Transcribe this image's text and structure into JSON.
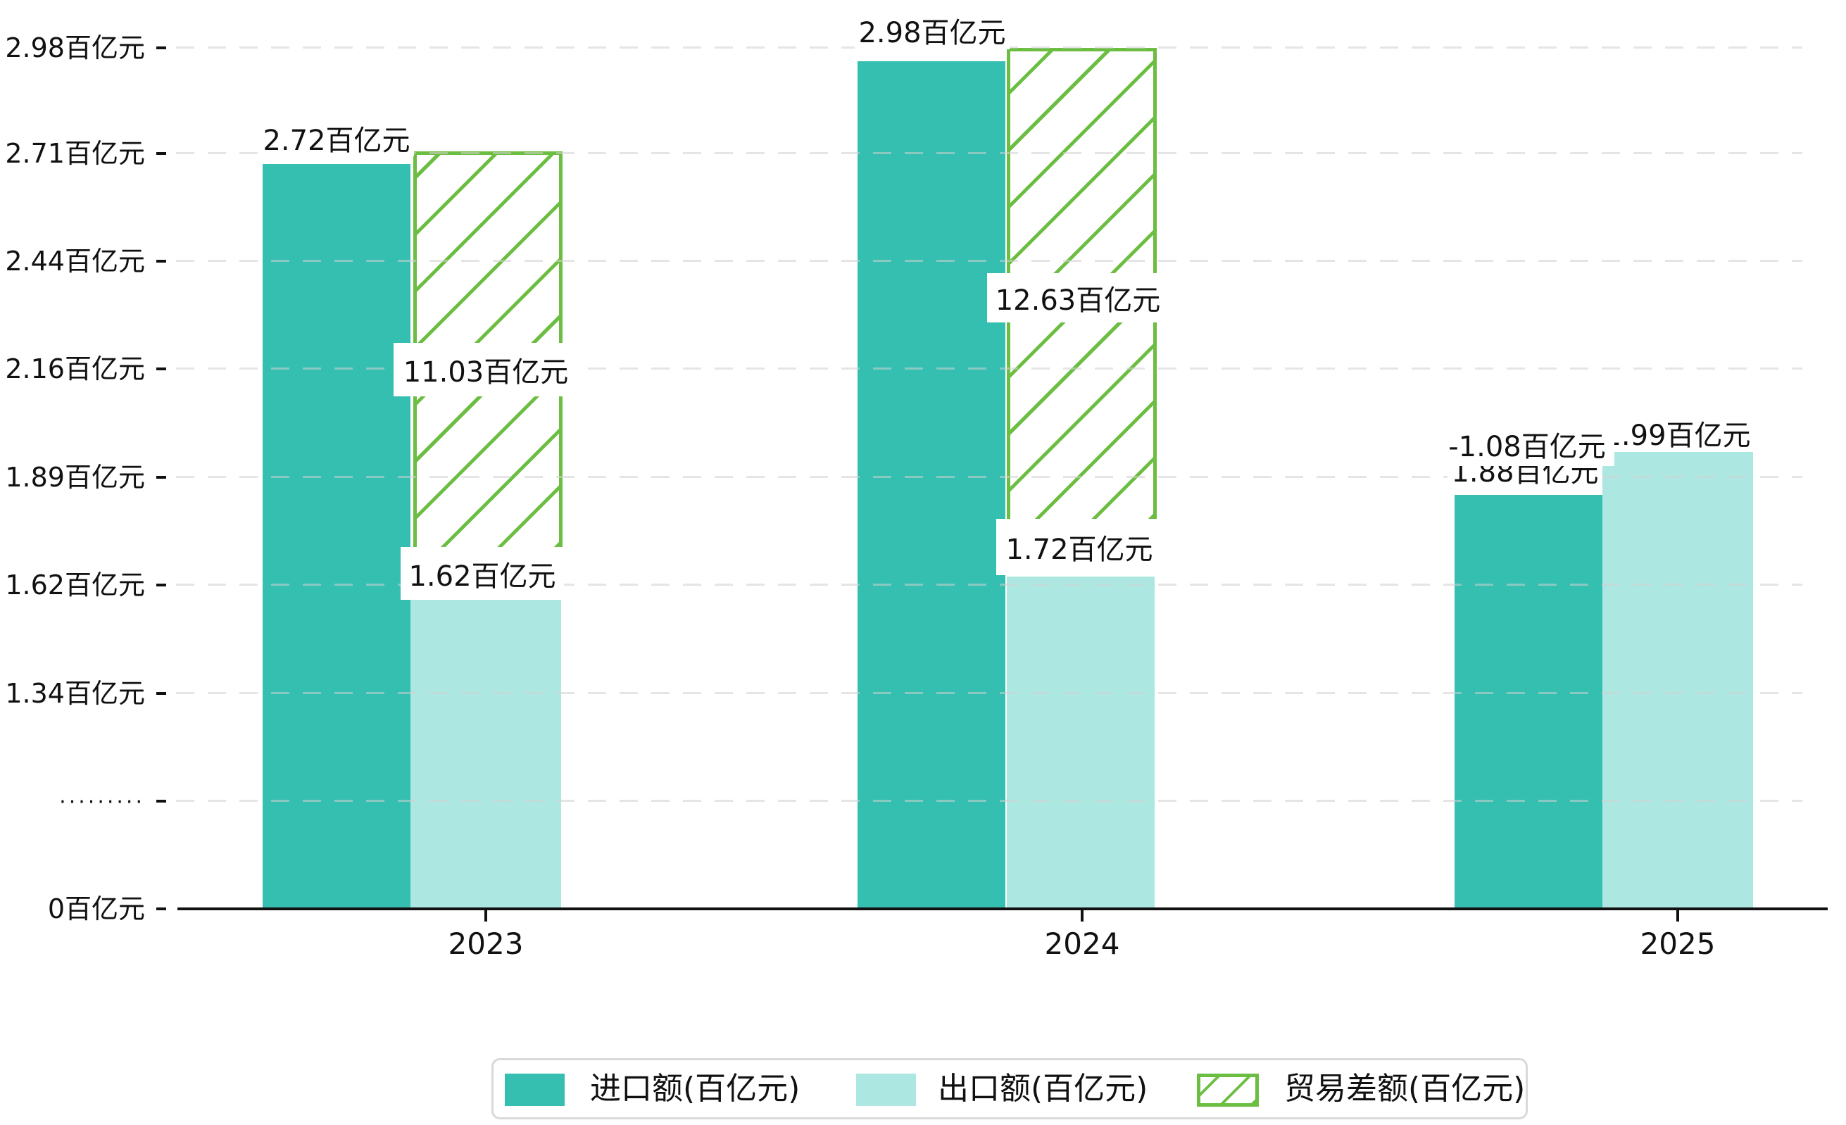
{
  "chart_data": {
    "type": "bar",
    "title": "",
    "xlabel": "",
    "ylabel": "",
    "categories": [
      "2023",
      "2024",
      "2025"
    ],
    "series": [
      {
        "name": "进口额(百亿元)",
        "key": "import",
        "values": [
          2.72,
          2.98,
          1.88
        ],
        "color": "#34bfb1",
        "pattern": "solid"
      },
      {
        "name": "出口额(百亿元)",
        "key": "export",
        "values": [
          1.62,
          1.72,
          1.99
        ],
        "color": "#ace8e1",
        "pattern": "solid"
      },
      {
        "name": "贸易差额(百亿元)",
        "key": "trade_balance",
        "values": [
          11.03,
          12.63,
          -1.08
        ],
        "color": "#6cbe42",
        "pattern": "diagonal-hatch"
      }
    ],
    "y_axis_unit": "百亿元",
    "y_ticks": [
      "2.98百亿元",
      "2.71百亿元",
      "2.44百亿元",
      "2.16百亿元",
      "1.89百亿元",
      "1.62百亿元",
      "1.34百亿元",
      "·········",
      "0百亿元"
    ],
    "axis_break_marker": "·········",
    "grid": "horizontal-dashed",
    "legend_position": "bottom-center"
  },
  "labels": {
    "y2023": {
      "import": "2.72百亿元",
      "balance": "11.03百亿元",
      "export": "1.62百亿元"
    },
    "y2024": {
      "import": "2.98百亿元",
      "balance": "12.63百亿元",
      "export": "1.72百亿元"
    },
    "y2025": {
      "balance": "-1.08百亿元",
      "import": "1.88百亿元",
      "export": "1.99百亿元"
    }
  },
  "legend": {
    "import": "进口额(百亿元)",
    "export": "出口额(百亿元)",
    "balance": "贸易差额(百亿元)"
  },
  "colors": {
    "import": "#34bfb1",
    "export": "#ace8e1",
    "balance_green": "#6cbe42",
    "gridline": "#e6e6e6",
    "axis": "#111111",
    "label_text": "#111111"
  }
}
